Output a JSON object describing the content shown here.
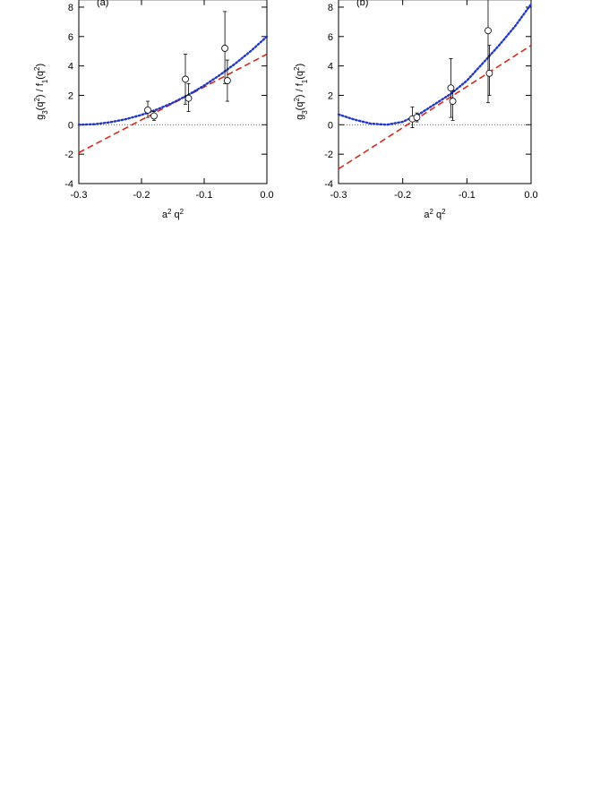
{
  "chart_data": [
    {
      "type": "scatter",
      "label": "(a)",
      "x_label_parts": [
        {
          "text": "a",
          "shift": "base"
        },
        {
          "text": "2",
          "shift": "super"
        },
        {
          "text": " q",
          "shift": "base"
        },
        {
          "text": "2",
          "shift": "super"
        }
      ],
      "y_label_parts": [
        {
          "text": "g",
          "shift": "base"
        },
        {
          "text": "3",
          "shift": "sub"
        },
        {
          "text": "(q",
          "shift": "base"
        },
        {
          "text": "2",
          "shift": "super"
        },
        {
          "text": ") / f",
          "shift": "base"
        },
        {
          "text": "1",
          "shift": "sub"
        },
        {
          "text": "(q",
          "shift": "base"
        },
        {
          "text": "2",
          "shift": "super"
        },
        {
          "text": ")",
          "shift": "base"
        }
      ],
      "xlim": [
        -0.3,
        0
      ],
      "xticks": [
        -0.3,
        -0.2,
        -0.1,
        {
          "value": 0,
          "label": "0.0"
        }
      ],
      "ylim": [
        -4,
        8.5
      ],
      "yticks": [
        -4,
        -2,
        0,
        2,
        4,
        6,
        8
      ],
      "hline": 0,
      "points": {
        "x": [
          -0.19,
          -0.18,
          -0.13,
          -0.125,
          -0.067,
          -0.063
        ],
        "values": [
          1.0,
          0.6,
          3.1,
          1.8,
          5.2,
          3.0
        ],
        "error_plus": [
          0.6,
          0.3,
          1.7,
          1.0,
          2.5,
          1.4
        ],
        "error_minus": [
          0.5,
          0.3,
          1.7,
          0.9,
          2.4,
          1.4
        ]
      },
      "fits": [
        {
          "color": "#d62a1e",
          "style": "dashed",
          "x": [
            -0.3,
            0
          ],
          "values": [
            -1.9,
            4.8
          ]
        },
        {
          "color": "#1f36c8",
          "style": "dotted",
          "x": [
            -0.3,
            -0.275,
            -0.25,
            -0.225,
            -0.2,
            -0.175,
            -0.15,
            -0.125,
            -0.1,
            -0.075,
            -0.05,
            -0.025,
            0
          ],
          "values": [
            0,
            0.04,
            0.17,
            0.38,
            0.67,
            1.04,
            1.5,
            2.04,
            2.67,
            3.38,
            4.17,
            5.04,
            6.0
          ]
        }
      ]
    },
    {
      "type": "scatter",
      "label": "(b)",
      "x_label_parts": [
        {
          "text": "a",
          "shift": "base"
        },
        {
          "text": "2",
          "shift": "super"
        },
        {
          "text": " q",
          "shift": "base"
        },
        {
          "text": "2",
          "shift": "super"
        }
      ],
      "y_label_parts": [
        {
          "text": "g",
          "shift": "base"
        },
        {
          "text": "3",
          "shift": "sub"
        },
        {
          "text": "(q",
          "shift": "base"
        },
        {
          "text": "2",
          "shift": "super"
        },
        {
          "text": ") / f",
          "shift": "base"
        },
        {
          "text": "1",
          "shift": "sub"
        },
        {
          "text": "(q",
          "shift": "base"
        },
        {
          "text": "2",
          "shift": "super"
        },
        {
          "text": ")",
          "shift": "base"
        }
      ],
      "xlim": [
        -0.3,
        0
      ],
      "xticks": [
        -0.3,
        -0.2,
        -0.1,
        {
          "value": 0,
          "label": "0.0"
        }
      ],
      "ylim": [
        -4,
        8.5
      ],
      "yticks": [
        -4,
        -2,
        0,
        2,
        4,
        6,
        8
      ],
      "hline": 0,
      "points": {
        "x": [
          -0.185,
          -0.178,
          -0.125,
          -0.122,
          -0.067,
          -0.065
        ],
        "values": [
          0.4,
          0.5,
          2.5,
          1.6,
          6.4,
          3.5
        ],
        "error_plus": [
          0.8,
          0.3,
          2.0,
          0.7,
          3.0,
          1.9
        ],
        "error_minus": [
          0.6,
          0.3,
          2.0,
          1.3,
          4.9,
          1.5
        ]
      },
      "fits": [
        {
          "color": "#d62a1e",
          "style": "dashed",
          "x": [
            -0.3,
            0
          ],
          "values": [
            -3.0,
            5.4
          ]
        },
        {
          "color": "#1f36c8",
          "style": "dotted",
          "x": [
            -0.3,
            -0.275,
            -0.25,
            -0.225,
            -0.2,
            -0.175,
            -0.15,
            -0.125,
            -0.1,
            -0.075,
            -0.05,
            -0.025,
            0
          ],
          "values": [
            0.7,
            0.35,
            0.08,
            0,
            0.2,
            0.7,
            1.4,
            2.1,
            3.0,
            4.2,
            5.4,
            6.7,
            8.2
          ]
        }
      ]
    }
  ]
}
